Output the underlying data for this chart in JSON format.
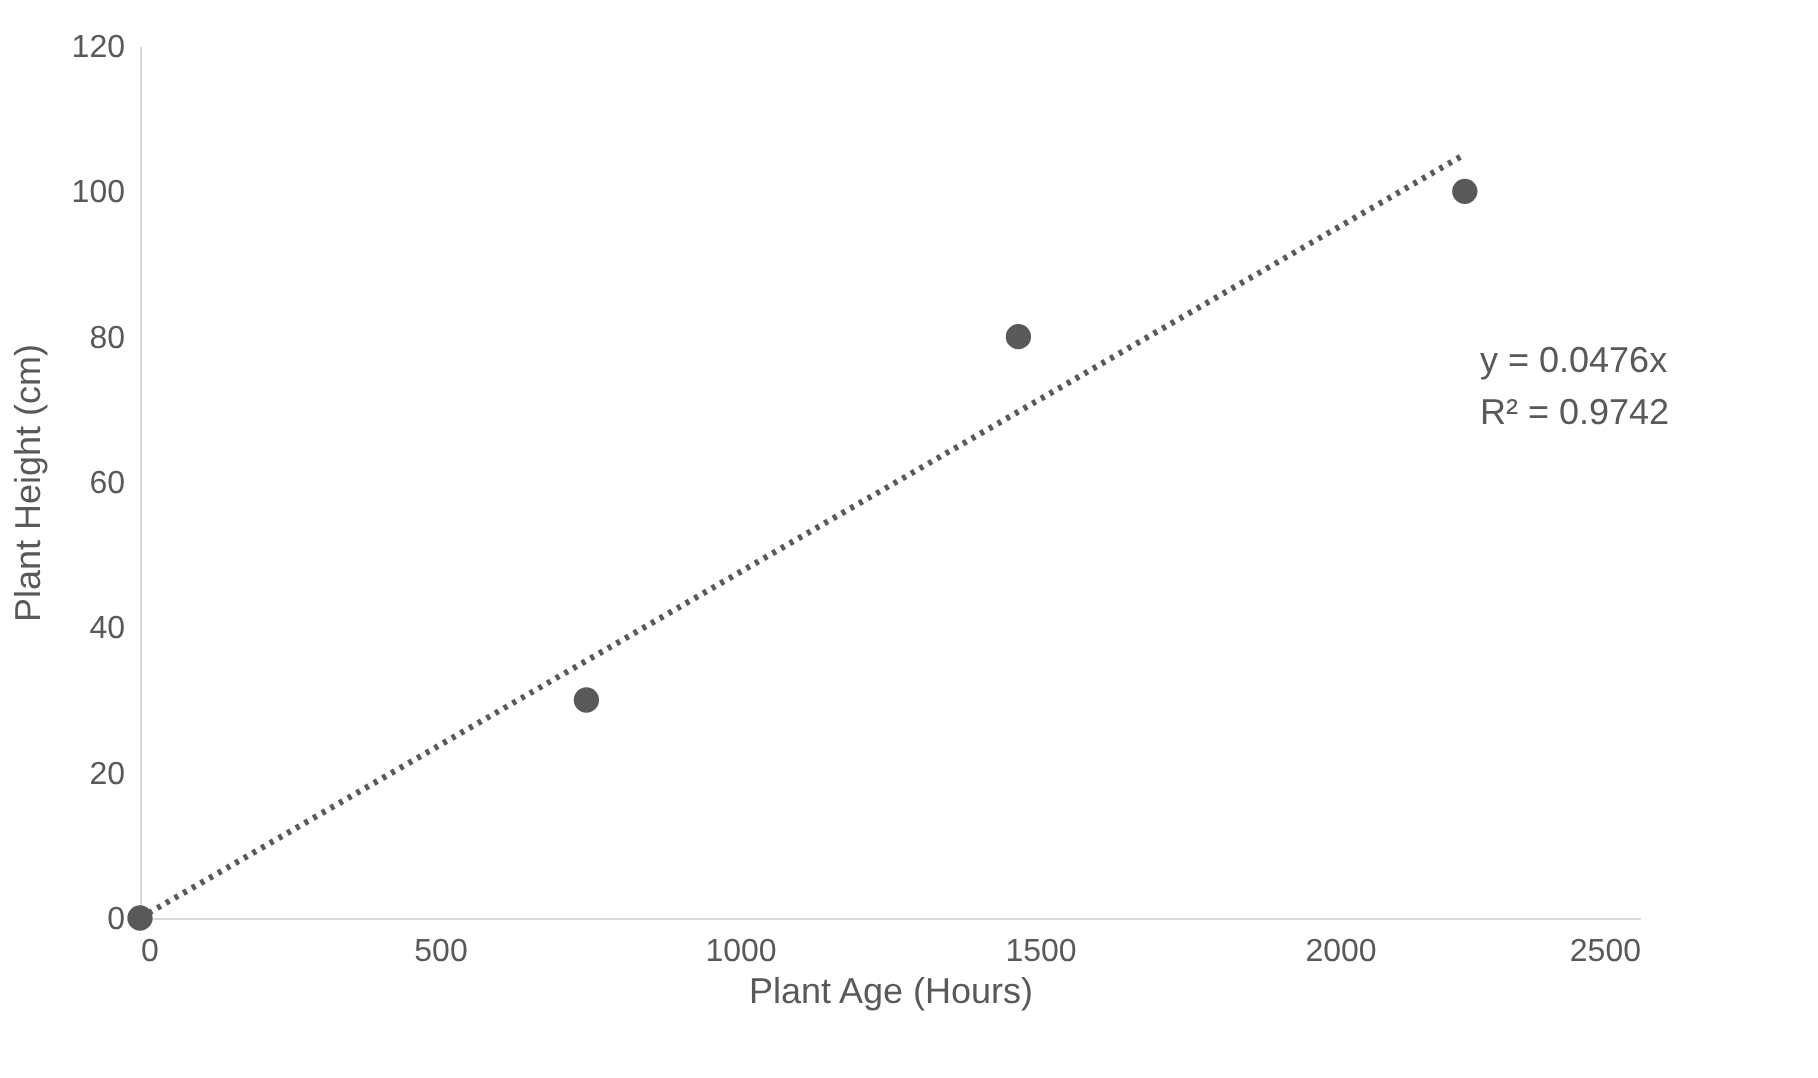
{
  "chart_data": {
    "type": "scatter",
    "xlabel": "Plant Age (Hours)",
    "ylabel": "Plant Height (cm)",
    "x": [
      0,
      744,
      1464,
      2208
    ],
    "series": [
      {
        "type": "scatter",
        "color": "#595959",
        "marker": "circle",
        "values": [
          0,
          30,
          80,
          100
        ]
      },
      {
        "type": "line",
        "color": "#595959",
        "line_style": "dotted",
        "marker": "none",
        "x": [
          0,
          2208
        ],
        "values": [
          0,
          105.1
        ]
      }
    ],
    "annotations": [
      "y = 0.0476x",
      "R² = 0.9742"
    ],
    "xlim": [
      0,
      2500
    ],
    "xticks": [
      0,
      500,
      1000,
      1500,
      2000,
      2500
    ],
    "ylim": [
      0,
      120
    ],
    "yticks": [
      0,
      20,
      40,
      60,
      80,
      100,
      120
    ],
    "grid": false
  }
}
